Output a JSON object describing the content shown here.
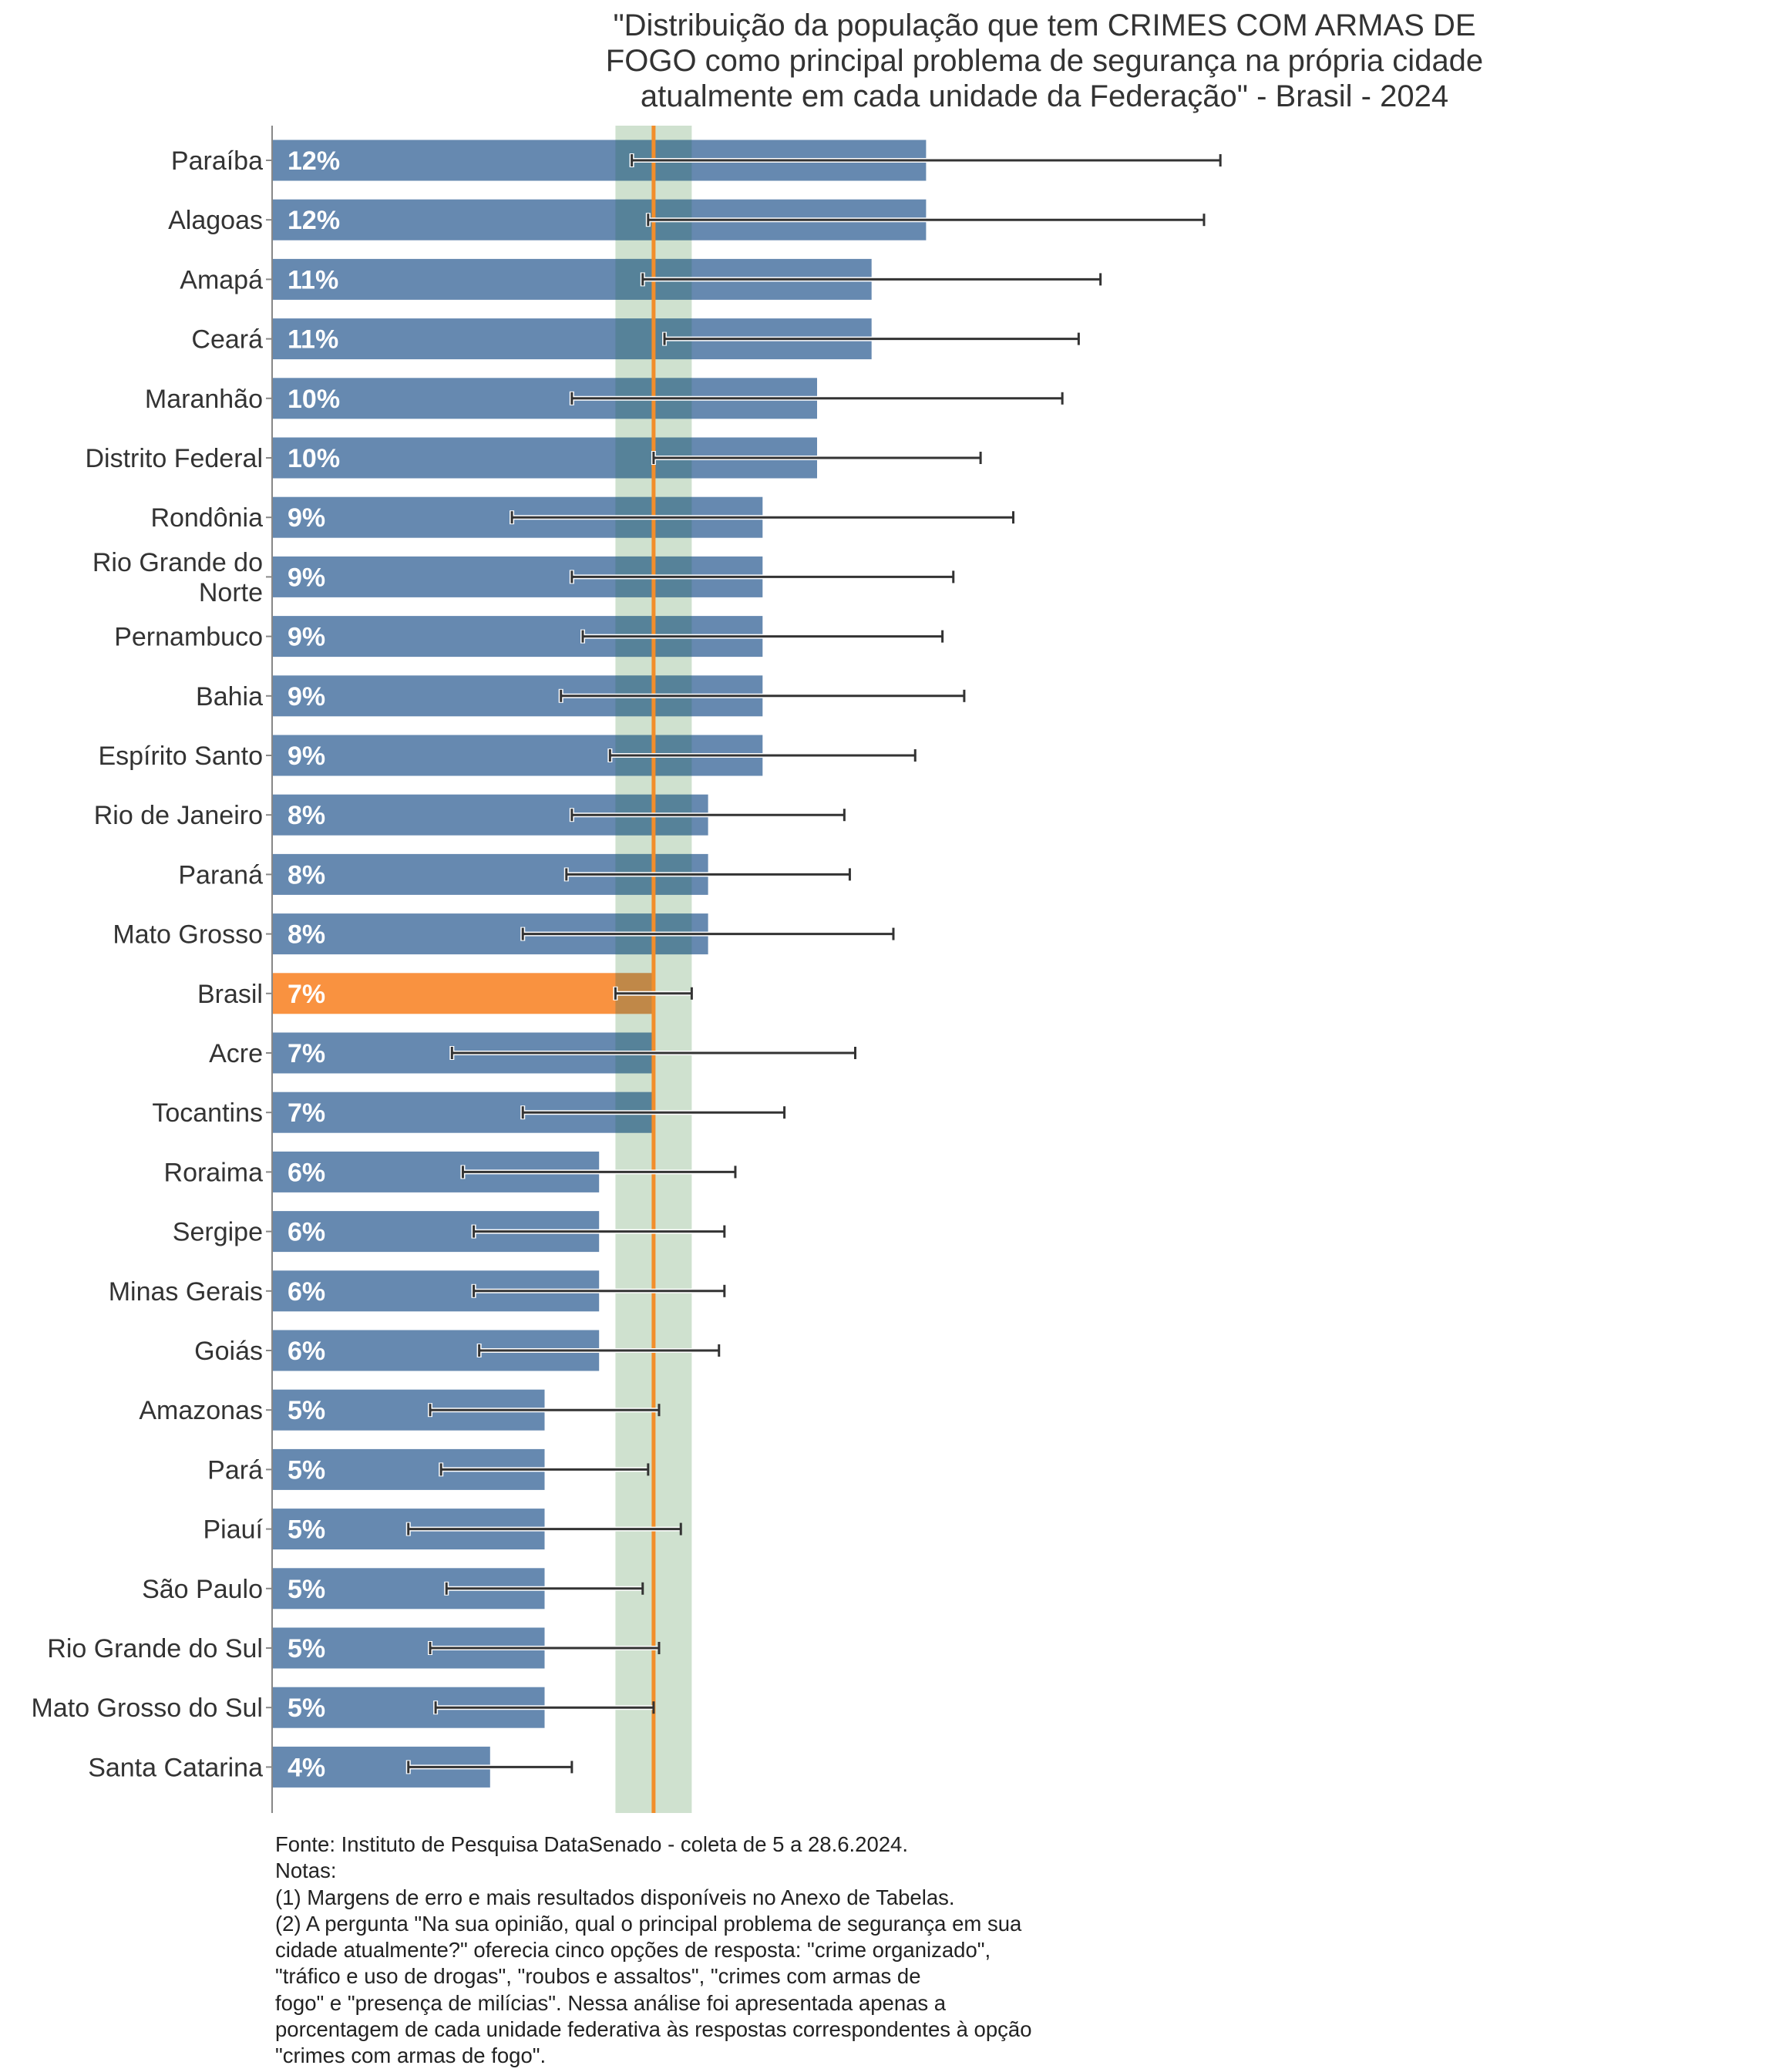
{
  "chart_data": {
    "type": "bar",
    "orientation": "horizontal",
    "title_lines": [
      "\"Distribuição da população que tem CRIMES COM ARMAS DE",
      "FOGO como principal problema de segurança na própria cidade",
      "atualmente em cada unidade da Federação\" - Brasil - 2024"
    ],
    "xlabel": "",
    "ylabel": "",
    "xlim": [
      0,
      20
    ],
    "grid": false,
    "legend": "none",
    "unit": "%",
    "reference": {
      "name": "Brasil",
      "value": 7.0,
      "ci_low": 6.3,
      "ci_high": 7.7,
      "line_color": "#F28E2B",
      "band_color": "#CFE1CF"
    },
    "colors": {
      "default_bar": "#6689B0",
      "highlight_bar": "#F99240",
      "error_bar": "#333333"
    },
    "categories": [
      "Paraíba",
      "Alagoas",
      "Amapá",
      "Ceará",
      "Maranhão",
      "Distrito Federal",
      "Rondônia",
      "Rio Grande do Norte",
      "Pernambuco",
      "Bahia",
      "Espírito Santo",
      "Rio de Janeiro",
      "Paraná",
      "Mato Grosso",
      "Brasil",
      "Acre",
      "Tocantins",
      "Roraima",
      "Sergipe",
      "Minas Gerais",
      "Goiás",
      "Amazonas",
      "Pará",
      "Piauí",
      "São Paulo",
      "Rio Grande do Sul",
      "Mato Grosso do Sul",
      "Santa Catarina"
    ],
    "category_label_lines": {
      "Rio Grande do Norte": [
        "Rio Grande do",
        "Norte"
      ]
    },
    "values": [
      12,
      12,
      11,
      11,
      10,
      10,
      9,
      9,
      9,
      9,
      9,
      8,
      8,
      8,
      7,
      7,
      7,
      6,
      6,
      6,
      6,
      5,
      5,
      5,
      5,
      5,
      5,
      4
    ],
    "value_labels": [
      "12%",
      "12%",
      "11%",
      "11%",
      "10%",
      "10%",
      "9%",
      "9%",
      "9%",
      "9%",
      "9%",
      "8%",
      "8%",
      "8%",
      "7%",
      "7%",
      "7%",
      "6%",
      "6%",
      "6%",
      "6%",
      "5%",
      "5%",
      "5%",
      "5%",
      "5%",
      "5%",
      "4%"
    ],
    "ci_low": [
      6.6,
      6.9,
      6.8,
      7.2,
      5.5,
      7.0,
      4.4,
      5.5,
      5.7,
      5.3,
      6.2,
      5.5,
      5.4,
      4.6,
      6.3,
      3.3,
      4.6,
      3.5,
      3.7,
      3.7,
      3.8,
      2.9,
      3.1,
      2.5,
      3.2,
      2.9,
      3.0,
      2.5
    ],
    "ci_high": [
      17.4,
      17.1,
      15.2,
      14.8,
      14.5,
      13.0,
      13.6,
      12.5,
      12.3,
      12.7,
      11.8,
      10.5,
      10.6,
      11.4,
      7.7,
      10.7,
      9.4,
      8.5,
      8.3,
      8.3,
      8.2,
      7.1,
      6.9,
      7.5,
      6.8,
      7.1,
      7.0,
      5.5
    ],
    "highlight": "Brasil"
  },
  "footnote": {
    "lines": [
      "Fonte: Instituto de Pesquisa DataSenado - coleta de 5 a 28.6.2024.",
      "Notas:",
      "(1) Margens de erro e mais resultados disponíveis no Anexo de Tabelas.",
      "(2) A pergunta \"Na sua opinião, qual o principal problema de segurança em sua",
      "cidade atualmente?\" oferecia cinco opções de resposta: \"crime organizado\",",
      "\"tráfico e uso de drogas\", \"roubos e assaltos\", \"crimes com armas de",
      "fogo\" e \"presença de milícias\". Nessa análise foi apresentada apenas a",
      "porcentagem de cada unidade federativa às respostas correspondentes à opção",
      "\"crimes com armas de fogo\"."
    ]
  }
}
